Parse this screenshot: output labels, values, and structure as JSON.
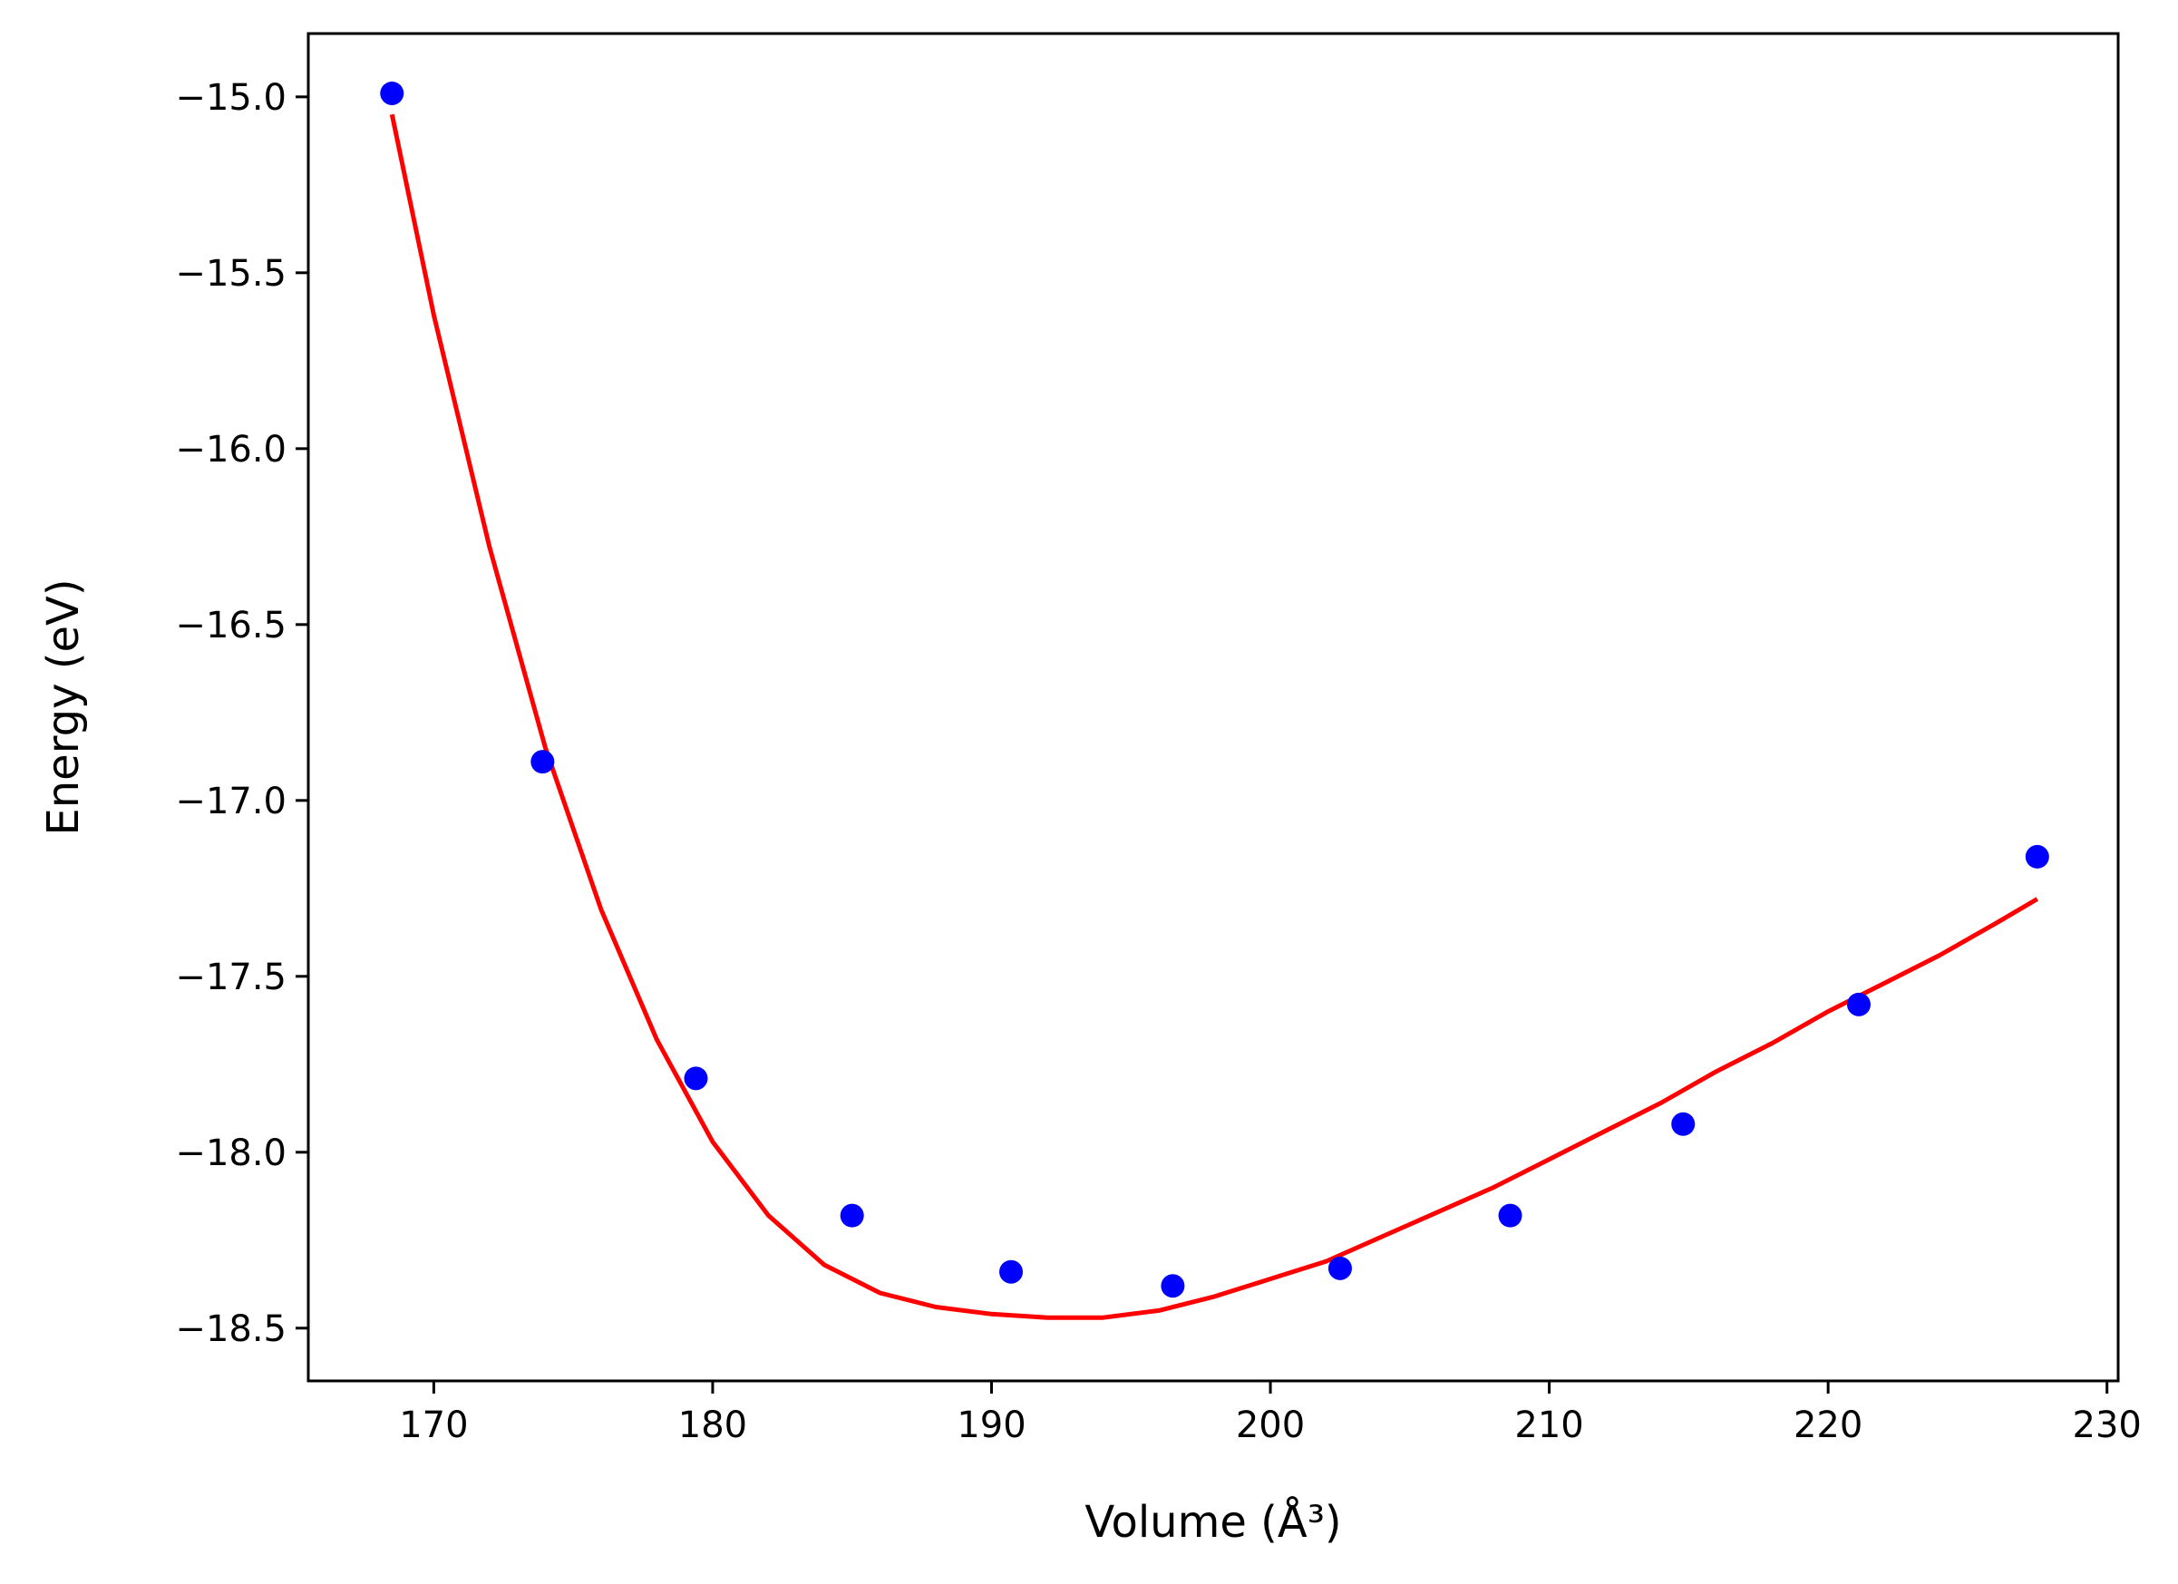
{
  "chart_data": {
    "type": "scatter",
    "xlabel": "Volume (Å³)",
    "ylabel": "Energy (eV)",
    "xlim": [
      165.5,
      230.4
    ],
    "ylim": [
      -18.65,
      -14.82
    ],
    "x_ticks": [
      170,
      180,
      190,
      200,
      210,
      220,
      230
    ],
    "y_ticks": [
      -15.0,
      -15.5,
      -16.0,
      -16.5,
      -17.0,
      -17.5,
      -18.0,
      -18.5
    ],
    "x_tick_labels": [
      "170",
      "180",
      "190",
      "200",
      "210",
      "220",
      "230"
    ],
    "y_tick_labels": [
      "−15.0",
      "−15.5",
      "−16.0",
      "−16.5",
      "−17.0",
      "−17.5",
      "−18.0",
      "−18.5"
    ],
    "grid": false,
    "series": [
      {
        "kind": "points",
        "color": "#0000ff",
        "x": [
          168.5,
          173.9,
          179.4,
          185.0,
          190.7,
          196.5,
          202.5,
          208.6,
          214.8,
          221.1,
          227.5
        ],
        "y": [
          -14.99,
          -16.89,
          -17.79,
          -18.18,
          -18.34,
          -18.38,
          -18.33,
          -18.18,
          -17.92,
          -17.58,
          -17.16
        ]
      },
      {
        "kind": "fit-curve",
        "color": "#ff0000",
        "x": [
          168.5,
          170.0,
          172.0,
          174.0,
          176.0,
          178.0,
          180.0,
          182.0,
          184.0,
          186.0,
          188.0,
          190.0,
          192.0,
          193.2,
          194.0,
          196.0,
          198.0,
          200.0,
          202.0,
          204.0,
          206.0,
          208.0,
          210.0,
          212.0,
          214.0,
          216.0,
          218.0,
          220.0,
          222.0,
          224.0,
          226.0,
          227.5
        ],
        "y": [
          -15.05,
          -15.62,
          -16.28,
          -16.85,
          -17.31,
          -17.68,
          -17.97,
          -18.18,
          -18.32,
          -18.4,
          -18.44,
          -18.46,
          -18.47,
          -18.47,
          -18.47,
          -18.45,
          -18.41,
          -18.36,
          -18.31,
          -18.24,
          -18.17,
          -18.1,
          -18.02,
          -17.94,
          -17.86,
          -17.77,
          -17.69,
          -17.6,
          -17.52,
          -17.44,
          -17.35,
          -17.28
        ]
      }
    ]
  }
}
